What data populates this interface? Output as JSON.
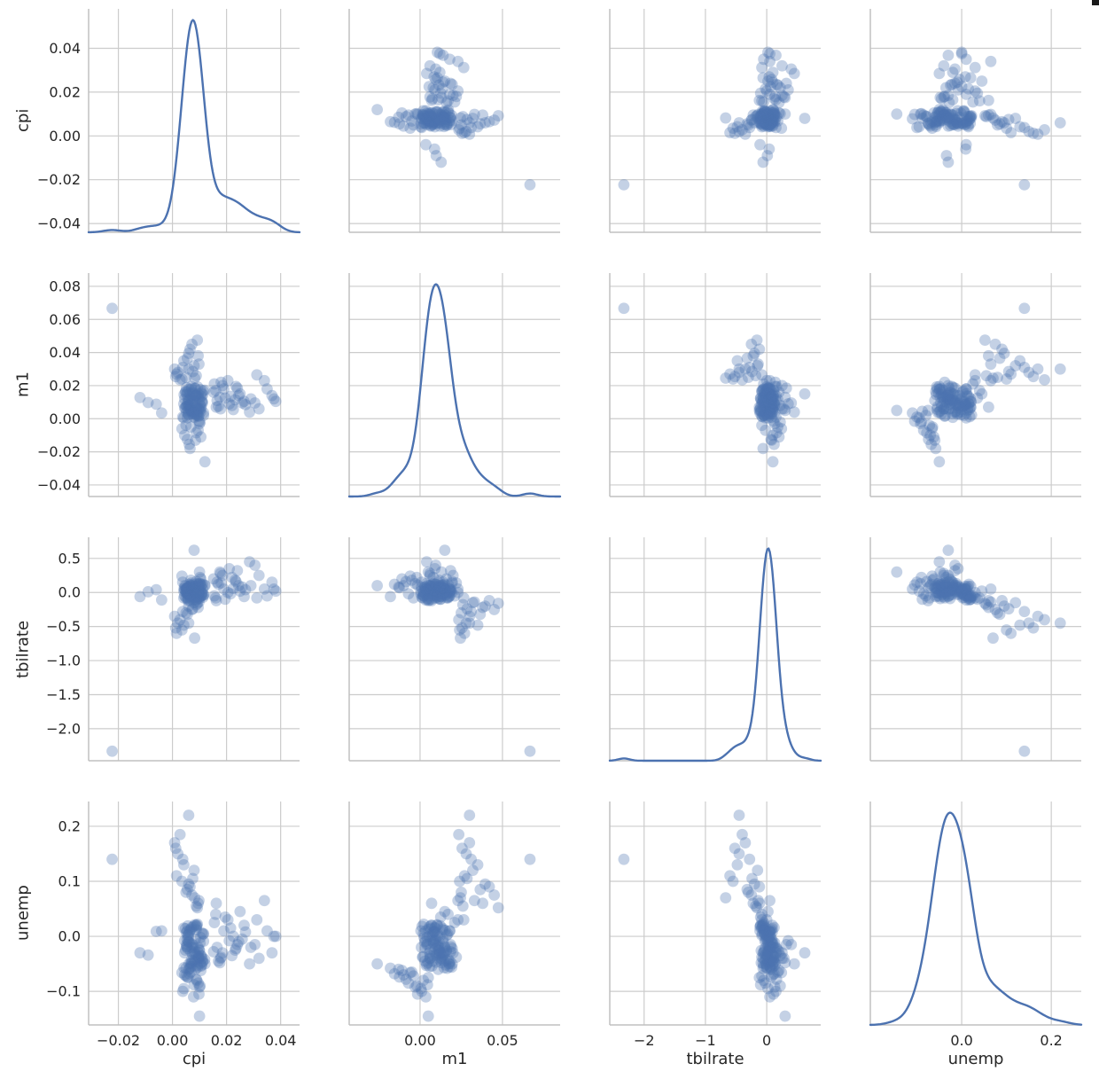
{
  "style": {
    "accent": "#4C72B0",
    "grid_color": "#cccccc",
    "spine_color": "#c0c0c0",
    "text_color": "#262626",
    "marker_alpha": 0.33,
    "background": "#ffffff"
  },
  "chart_data": {
    "type": "scatter_matrix",
    "diagonal": "kde",
    "grid": true,
    "variables": [
      "cpi",
      "m1",
      "tbilrate",
      "unemp"
    ],
    "x_labels": [
      "cpi",
      "m1",
      "tbilrate",
      "unemp"
    ],
    "y_labels": [
      "cpi",
      "m1",
      "tbilrate",
      "unemp"
    ],
    "col_ranges": {
      "cpi": [
        -0.031,
        0.047
      ],
      "m1": [
        -0.043,
        0.085
      ],
      "tbilrate": [
        -2.56,
        0.88
      ],
      "unemp": [
        -0.204,
        0.267
      ]
    },
    "row_ranges": {
      "cpi": [
        -0.044,
        0.058
      ],
      "m1": [
        -0.047,
        0.088
      ],
      "tbilrate": [
        -2.47,
        0.81
      ],
      "unemp": [
        -0.161,
        0.245
      ]
    },
    "col_ticks": {
      "cpi": [
        {
          "v": -0.02,
          "label": "−0.02"
        },
        {
          "v": 0.0,
          "label": "0.00"
        },
        {
          "v": 0.02,
          "label": "0.02"
        },
        {
          "v": 0.04,
          "label": "0.04"
        }
      ],
      "m1": [
        {
          "v": 0.0,
          "label": "0.00"
        },
        {
          "v": 0.05,
          "label": "0.05"
        }
      ],
      "tbilrate": [
        {
          "v": -2,
          "label": "−2"
        },
        {
          "v": -1,
          "label": "−1"
        },
        {
          "v": 0,
          "label": "0"
        }
      ],
      "unemp": [
        {
          "v": 0.0,
          "label": "0.0"
        },
        {
          "v": 0.2,
          "label": "0.2"
        }
      ]
    },
    "row_ticks": {
      "cpi": [
        {
          "v": 0.04,
          "label": "0.04"
        },
        {
          "v": 0.02,
          "label": "0.02"
        },
        {
          "v": 0.0,
          "label": "0.00"
        },
        {
          "v": -0.02,
          "label": "−0.02"
        },
        {
          "v": -0.04,
          "label": "−0.04"
        }
      ],
      "m1": [
        {
          "v": 0.08,
          "label": "0.08"
        },
        {
          "v": 0.06,
          "label": "0.06"
        },
        {
          "v": 0.04,
          "label": "0.04"
        },
        {
          "v": 0.02,
          "label": "0.02"
        },
        {
          "v": 0.0,
          "label": "0.00"
        },
        {
          "v": -0.02,
          "label": "−0.02"
        },
        {
          "v": -0.04,
          "label": "−0.04"
        }
      ],
      "tbilrate": [
        {
          "v": 0.5,
          "label": "0.5"
        },
        {
          "v": 0.0,
          "label": "0.0"
        },
        {
          "v": -0.5,
          "label": "−0.5"
        },
        {
          "v": -1.0,
          "label": "−1.0"
        },
        {
          "v": -1.5,
          "label": "−1.5"
        },
        {
          "v": -2.0,
          "label": "−2.0"
        }
      ],
      "unemp": [
        {
          "v": 0.2,
          "label": "0.2"
        },
        {
          "v": 0.1,
          "label": "0.1"
        },
        {
          "v": 0.0,
          "label": "0.0"
        },
        {
          "v": -0.1,
          "label": "−0.1"
        }
      ]
    },
    "kde_peak_fraction": 0.95,
    "points": [
      [
        0.006,
        0.008,
        0.02,
        -0.01
      ],
      [
        0.0045,
        0.012,
        -0.05,
        -0.03
      ],
      [
        0.008,
        0.003,
        0.08,
        -0.045
      ],
      [
        0.0095,
        0.015,
        0.12,
        -0.02
      ],
      [
        0.0055,
        0.0005,
        -0.02,
        0.01
      ],
      [
        0.007,
        0.018,
        0.05,
        -0.055
      ],
      [
        0.0042,
        0.009,
        -0.08,
        0.015
      ],
      [
        0.0105,
        0.006,
        0.1,
        -0.035
      ],
      [
        0.0085,
        0.014,
        0.0,
        -0.005
      ],
      [
        0.006,
        0.011,
        0.06,
        -0.06
      ],
      [
        0.0115,
        0.002,
        -0.04,
        0.005
      ],
      [
        0.0048,
        0.016,
        0.03,
        -0.025
      ],
      [
        0.009,
        0.007,
        -0.1,
        0.02
      ],
      [
        0.007,
        0.0195,
        0.14,
        -0.05
      ],
      [
        0.0052,
        0.004,
        0.01,
        -0.015
      ],
      [
        0.0098,
        0.0125,
        -0.06,
        -0.04
      ],
      [
        0.0063,
        0.0085,
        0.09,
        0.008
      ],
      [
        0.0108,
        0.0155,
        -0.01,
        -0.052
      ],
      [
        0.0045,
        0.0065,
        0.04,
        -0.008
      ],
      [
        0.0078,
        0.0012,
        -0.07,
        0.018
      ],
      [
        0.0119,
        0.0172,
        0.11,
        -0.042
      ],
      [
        0.0056,
        0.0095,
        -0.03,
        -0.022
      ],
      [
        0.0088,
        0.0138,
        0.07,
        0.012
      ],
      [
        0.0068,
        0.0048,
        -0.09,
        -0.048
      ],
      [
        0.0102,
        0.0082,
        0.13,
        -0.012
      ],
      [
        0.005,
        0.0165,
        0.0,
        -0.058
      ],
      [
        0.0092,
        0.0022,
        -0.05,
        0.022
      ],
      [
        0.0074,
        0.0118,
        0.08,
        -0.032
      ],
      [
        0.0059,
        0.0075,
        -0.02,
        0.003
      ],
      [
        0.0112,
        0.0145,
        0.05,
        -0.045
      ],
      [
        -0.004,
        0.0035,
        -0.11,
        0.01
      ],
      [
        0.0083,
        0.0185,
        0.02,
        -0.028
      ],
      [
        0.0066,
        0.0058,
        0.1,
        -0.055
      ],
      [
        0.0109,
        0.0102,
        -0.04,
        0.006
      ],
      [
        0.0053,
        0.0148,
        0.06,
        -0.018
      ],
      [
        0.0096,
        0.0015,
        -0.08,
        -0.038
      ],
      [
        0.0071,
        0.0092,
        0.12,
        0.016
      ],
      [
        0.0061,
        0.0178,
        -0.01,
        -0.05
      ],
      [
        0.0104,
        0.0042,
        0.03,
        -0.002
      ],
      [
        -0.012,
        0.0128,
        -0.06,
        -0.03
      ],
      [
        0.0087,
        0.0068,
        0.09,
        0.02
      ],
      [
        0.0075,
        0.0158,
        -0.03,
        -0.044
      ],
      [
        0.0058,
        0.0028,
        0.07,
        -0.01
      ],
      [
        0.01,
        0.0112,
        -0.09,
        -0.026
      ],
      [
        -0.006,
        0.0088,
        0.04,
        0.009
      ],
      [
        0.0093,
        0.0192,
        0.0,
        -0.056
      ],
      [
        0.0069,
        0.0052,
        -0.05,
        0.013
      ],
      [
        0.0107,
        0.0135,
        0.11,
        -0.036
      ],
      [
        0.0054,
        0.0078,
        -0.02,
        -0.006
      ],
      [
        0.0081,
        0.0008,
        0.08,
        -0.02
      ],
      [
        0.0113,
        0.0168,
        -0.07,
        0.004
      ],
      [
        -0.009,
        0.0098,
        0.01,
        -0.034
      ],
      [
        0.0091,
        0.0038,
        0.13,
        -0.053
      ],
      [
        0.0064,
        0.0152,
        -0.04,
        0.011
      ],
      [
        0.0099,
        0.0062,
        0.05,
        -0.024
      ],
      [
        0.0057,
        0.0122,
        -0.1,
        0.019
      ],
      [
        0.0084,
        0.0182,
        0.02,
        -0.046
      ],
      [
        0.0072,
        0.0045,
        0.1,
        -0.014
      ],
      [
        0.011,
        0.0105,
        -0.01,
        -0.04
      ],
      [
        0.0051,
        0.0075,
        0.06,
        0.007
      ],
      [
        0.0076,
        0.0108,
        0.03,
        -0.016
      ],
      [
        0.0067,
        0.0086,
        -0.04,
        -0.027
      ],
      [
        0.0094,
        0.0132,
        0.07,
        -0.041
      ],
      [
        0.0059,
        0.0024,
        0.0,
        -0.002
      ],
      [
        0.0103,
        0.0176,
        -0.06,
        -0.049
      ],
      [
        0.0048,
        0.0066,
        0.09,
        0.014
      ],
      [
        0.0086,
        0.0142,
        -0.02,
        -0.033
      ],
      [
        0.0073,
        0.0032,
        0.05,
        -0.021
      ],
      [
        0.0111,
        0.0096,
        0.12,
        -0.047
      ],
      [
        0.0056,
        0.0162,
        -0.08,
        0.002
      ],
      [
        0.0097,
        0.0018,
        0.01,
        -0.037
      ],
      [
        0.0062,
        0.0116,
        0.08,
        -0.011
      ],
      [
        0.0106,
        0.0072,
        -0.05,
        -0.054
      ],
      [
        0.0052,
        0.0188,
        0.04,
        -0.019
      ],
      [
        0.0089,
        0.0056,
        -0.11,
        0.017
      ],
      [
        0.007,
        0.0124,
        0.1,
        -0.043
      ],
      [
        0.0115,
        0.0036,
        -0.03,
        -0.009
      ],
      [
        0.0043,
        0.0146,
        0.06,
        -0.057
      ],
      [
        0.0082,
        0.0102,
        -0.07,
        0.021
      ],
      [
        0.0095,
        0.0058,
        0.02,
        -0.029
      ],
      [
        0.0165,
        0.011,
        0.15,
        -0.02
      ],
      [
        0.019,
        0.018,
        0.05,
        0.01
      ],
      [
        0.022,
        0.008,
        0.22,
        -0.035
      ],
      [
        0.0155,
        0.021,
        -0.05,
        0.025
      ],
      [
        0.0245,
        0.014,
        0.1,
        -0.01
      ],
      [
        0.0178,
        0.006,
        0.28,
        -0.04
      ],
      [
        0.0205,
        0.023,
        0.0,
        0.03
      ],
      [
        0.0232,
        0.0115,
        0.18,
        -0.025
      ],
      [
        0.016,
        0.017,
        -0.08,
        0.04
      ],
      [
        0.0258,
        0.0095,
        0.08,
        -0.005
      ],
      [
        0.0185,
        0.02,
        0.25,
        -0.03
      ],
      [
        0.0215,
        0.0135,
        -0.02,
        0.015
      ],
      [
        0.017,
        0.0075,
        0.12,
        -0.045
      ],
      [
        0.024,
        0.0185,
        0.32,
        -0.015
      ],
      [
        0.0195,
        0.0125,
        -0.1,
        0.035
      ],
      [
        0.0225,
        0.0055,
        0.06,
        0.0
      ],
      [
        0.0152,
        0.016,
        0.2,
        -0.028
      ],
      [
        0.0265,
        0.0105,
        -0.06,
        0.02
      ],
      [
        0.018,
        0.022,
        0.14,
        -0.038
      ],
      [
        0.021,
        0.009,
        0.35,
        -0.008
      ],
      [
        0.025,
        0.015,
        0.02,
        0.045
      ],
      [
        0.0162,
        0.007,
        -0.12,
        0.06
      ],
      [
        0.0235,
        0.0195,
        0.16,
        -0.022
      ],
      [
        0.0175,
        0.013,
        0.3,
        -0.048
      ],
      [
        0.027,
        0.0085,
        0.04,
        0.008
      ],
      [
        0.005,
        0.025,
        -0.3,
        0.08
      ],
      [
        0.008,
        0.032,
        -0.15,
        0.12
      ],
      [
        0.002,
        0.028,
        -0.45,
        0.15
      ],
      [
        0.0095,
        0.038,
        -0.22,
        0.06
      ],
      [
        0.0035,
        0.024,
        -0.55,
        0.1
      ],
      [
        0.0065,
        0.042,
        -0.12,
        0.09
      ],
      [
        0.0008,
        0.03,
        -0.35,
        0.17
      ],
      [
        0.0088,
        0.026,
        -0.18,
        0.055
      ],
      [
        0.0042,
        0.035,
        -0.48,
        0.13
      ],
      [
        0.0072,
        0.045,
        -0.25,
        0.075
      ],
      [
        0.0015,
        0.027,
        -0.6,
        0.11
      ],
      [
        0.0098,
        0.033,
        -0.14,
        0.065
      ],
      [
        0.0028,
        0.0235,
        -0.4,
        0.185
      ],
      [
        0.006,
        0.0395,
        -0.2,
        0.095
      ],
      [
        0.0082,
        0.0245,
        -0.67,
        0.07
      ],
      [
        0.0038,
        0.031,
        -0.28,
        0.14
      ],
      [
        0.0092,
        0.0475,
        -0.16,
        0.052
      ],
      [
        0.0012,
        0.0255,
        -0.52,
        0.16
      ],
      [
        0.0055,
        0.0365,
        -0.32,
        0.085
      ],
      [
        0.0075,
        0.0285,
        -0.24,
        0.105
      ],
      [
        0.0068,
        -0.005,
        0.18,
        -0.065
      ],
      [
        0.009,
        0.002,
        -0.05,
        -0.08
      ],
      [
        0.0045,
        -0.01,
        0.1,
        -0.07
      ],
      [
        0.0102,
        -0.002,
        0.22,
        -0.09
      ],
      [
        0.0058,
        0.005,
        -0.12,
        -0.075
      ],
      [
        0.0085,
        -0.013,
        0.08,
        -0.06
      ],
      [
        0.0038,
        0.001,
        0.15,
        -0.1
      ],
      [
        0.0095,
        -0.007,
        -0.02,
        -0.085
      ],
      [
        0.0062,
        -0.0155,
        0.12,
        -0.068
      ],
      [
        0.0078,
        0.0035,
        0.05,
        -0.11
      ],
      [
        0.005,
        -0.004,
        -0.08,
        -0.072
      ],
      [
        0.0105,
        -0.011,
        0.2,
        -0.062
      ],
      [
        0.0042,
        0.0005,
        0.02,
        -0.095
      ],
      [
        0.0088,
        -0.0085,
        0.16,
        -0.078
      ],
      [
        0.0065,
        -0.018,
        -0.06,
        -0.058
      ],
      [
        0.0098,
        -0.0015,
        0.11,
        -0.105
      ],
      [
        0.0035,
        -0.006,
        0.24,
        -0.066
      ],
      [
        0.008,
        0.0045,
        -0.1,
        -0.088
      ],
      [
        0.0055,
        -0.0125,
        0.07,
        -0.074
      ],
      [
        0.01,
        -0.003,
        0.13,
        -0.092
      ],
      [
        0.029,
        0.012,
        0.1,
        -0.02
      ],
      [
        0.032,
        0.006,
        0.25,
        -0.04
      ],
      [
        0.035,
        0.018,
        -0.05,
        0.01
      ],
      [
        0.0305,
        0.0095,
        0.4,
        -0.015
      ],
      [
        0.034,
        0.023,
        0.05,
        0.065
      ],
      [
        0.0285,
        0.004,
        0.45,
        -0.05
      ],
      [
        0.0368,
        0.014,
        0.15,
        -0.03
      ],
      [
        0.0312,
        0.0265,
        -0.08,
        0.03
      ],
      [
        0.0382,
        0.0105,
        0.02,
        0.0
      ],
      [
        -0.0223,
        0.0667,
        -2.33,
        0.14
      ],
      [
        0.0375,
        0.012,
        0.05,
        0.0
      ],
      [
        0.008,
        0.015,
        0.62,
        -0.03
      ],
      [
        0.012,
        -0.026,
        0.1,
        -0.05
      ],
      [
        0.01,
        0.005,
        0.3,
        -0.145
      ],
      [
        0.006,
        0.03,
        -0.45,
        0.22
      ]
    ]
  }
}
